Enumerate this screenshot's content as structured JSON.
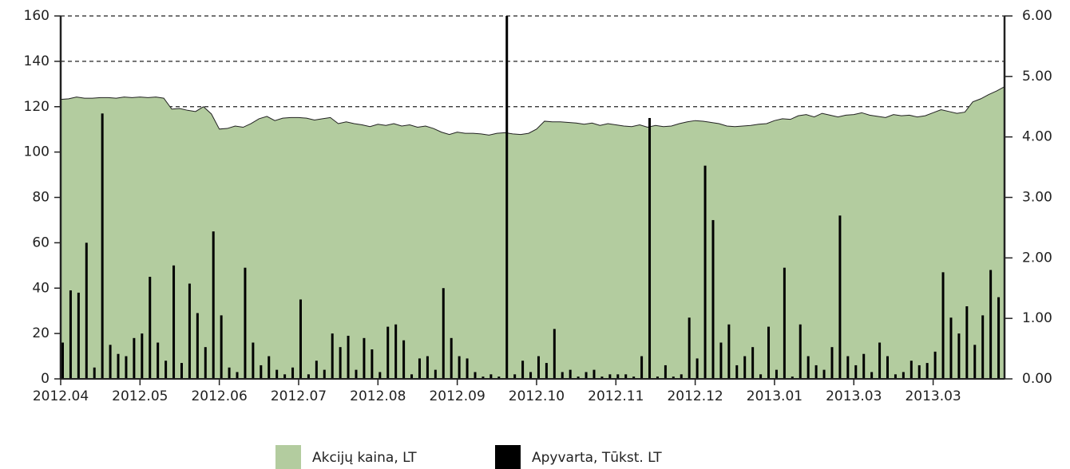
{
  "chart_data": {
    "type": "bar",
    "xlim": [
      0,
      119
    ],
    "xticks": [
      {
        "value": 0,
        "label": "2012.04"
      },
      {
        "value": 10,
        "label": "2012.05"
      },
      {
        "value": 20,
        "label": "2012.06"
      },
      {
        "value": 30,
        "label": "2012.07"
      },
      {
        "value": 40,
        "label": "2012.08"
      },
      {
        "value": 50,
        "label": "2012.09"
      },
      {
        "value": 60,
        "label": "2012.10"
      },
      {
        "value": 70,
        "label": "2012.11"
      },
      {
        "value": 80,
        "label": "2012.12"
      },
      {
        "value": 90,
        "label": "2013.01"
      },
      {
        "value": 100,
        "label": "2013.03"
      },
      {
        "value": 110,
        "label": "2013.03"
      }
    ],
    "ylim": [
      0,
      160
    ],
    "yticks": [
      0,
      20,
      40,
      60,
      80,
      100,
      120,
      140,
      160
    ],
    "y2lim": [
      0,
      6
    ],
    "y2ticks": [
      {
        "value": 0,
        "label": "0.00"
      },
      {
        "value": 1,
        "label": "1.00"
      },
      {
        "value": 2,
        "label": "2.00"
      },
      {
        "value": 3,
        "label": "3.00"
      },
      {
        "value": 4,
        "label": "4.00"
      },
      {
        "value": 5,
        "label": "5.00"
      },
      {
        "value": 6,
        "label": "6.00"
      }
    ],
    "grid": true,
    "legend": "bottom",
    "series": [
      {
        "name": "Akcijų kaina, LT",
        "type": "area",
        "axis": "y2",
        "color": "#b3cc9f",
        "values": [
          4.62,
          4.63,
          4.66,
          4.64,
          4.64,
          4.65,
          4.65,
          4.64,
          4.66,
          4.65,
          4.66,
          4.65,
          4.66,
          4.64,
          4.46,
          4.47,
          4.44,
          4.42,
          4.5,
          4.38,
          4.13,
          4.14,
          4.18,
          4.16,
          4.22,
          4.3,
          4.34,
          4.27,
          4.31,
          4.32,
          4.32,
          4.31,
          4.28,
          4.3,
          4.32,
          4.22,
          4.25,
          4.22,
          4.2,
          4.17,
          4.21,
          4.19,
          4.22,
          4.18,
          4.2,
          4.16,
          4.18,
          4.14,
          4.08,
          4.04,
          4.08,
          4.06,
          4.06,
          4.05,
          4.03,
          4.06,
          4.07,
          4.05,
          4.04,
          4.06,
          4.13,
          4.26,
          4.25,
          4.25,
          4.24,
          4.23,
          4.21,
          4.23,
          4.19,
          4.22,
          4.2,
          4.18,
          4.17,
          4.2,
          4.16,
          4.19,
          4.17,
          4.18,
          4.22,
          4.25,
          4.27,
          4.26,
          4.24,
          4.22,
          4.18,
          4.17,
          4.18,
          4.19,
          4.21,
          4.22,
          4.27,
          4.3,
          4.29,
          4.35,
          4.37,
          4.33,
          4.39,
          4.36,
          4.33,
          4.36,
          4.37,
          4.4,
          4.36,
          4.34,
          4.32,
          4.37,
          4.35,
          4.36,
          4.33,
          4.35,
          4.4,
          4.45,
          4.42,
          4.39,
          4.41,
          4.58,
          4.63,
          4.7,
          4.76,
          4.83
        ]
      },
      {
        "name": "Apyvarta, Tūkst. LT",
        "type": "bar",
        "color": "#000000",
        "values": [
          16,
          39,
          38,
          60,
          5,
          117,
          15,
          11,
          10,
          18,
          20,
          45,
          16,
          8,
          50,
          7,
          42,
          29,
          14,
          65,
          28,
          5,
          3,
          49,
          16,
          6,
          10,
          4,
          2,
          5,
          35,
          2,
          8,
          4,
          20,
          14,
          19,
          4,
          18,
          13,
          3,
          23,
          24,
          17,
          2,
          9,
          10,
          4,
          40,
          18,
          10,
          9,
          3,
          1,
          2,
          1,
          170,
          2,
          8,
          3,
          10,
          7,
          22,
          3,
          4,
          1,
          3,
          4,
          1,
          2,
          2,
          2,
          1,
          10,
          115,
          1,
          6,
          1,
          2,
          27,
          9,
          94,
          70,
          16,
          24,
          6,
          10,
          14,
          2,
          23,
          4,
          49,
          1,
          24,
          10,
          6,
          4,
          14,
          72,
          10,
          6,
          11,
          3,
          16,
          10,
          2,
          3,
          8,
          6,
          7,
          12,
          47,
          27,
          20,
          32,
          15,
          28,
          48,
          36,
          61
        ]
      }
    ]
  }
}
